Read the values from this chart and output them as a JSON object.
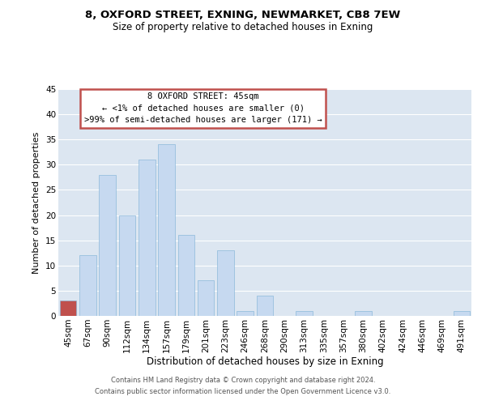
{
  "title1": "8, OXFORD STREET, EXNING, NEWMARKET, CB8 7EW",
  "title2": "Size of property relative to detached houses in Exning",
  "xlabel": "Distribution of detached houses by size in Exning",
  "ylabel": "Number of detached properties",
  "bar_labels": [
    "45sqm",
    "67sqm",
    "90sqm",
    "112sqm",
    "134sqm",
    "157sqm",
    "179sqm",
    "201sqm",
    "223sqm",
    "246sqm",
    "268sqm",
    "290sqm",
    "313sqm",
    "335sqm",
    "357sqm",
    "380sqm",
    "402sqm",
    "424sqm",
    "446sqm",
    "469sqm",
    "491sqm"
  ],
  "bar_values": [
    3,
    12,
    28,
    20,
    31,
    34,
    16,
    7,
    13,
    1,
    4,
    0,
    1,
    0,
    0,
    1,
    0,
    0,
    0,
    0,
    1
  ],
  "highlight_index": 0,
  "bar_color": "#c6d9f0",
  "highlight_color": "#c0504d",
  "bar_edge_color": "#7bafd4",
  "ylim": [
    0,
    45
  ],
  "yticks": [
    0,
    5,
    10,
    15,
    20,
    25,
    30,
    35,
    40,
    45
  ],
  "annotation_box_text": [
    "8 OXFORD STREET: 45sqm",
    "← <1% of detached houses are smaller (0)",
    ">99% of semi-detached houses are larger (171) →"
  ],
  "annotation_box_color": "#c0504d",
  "footer1": "Contains HM Land Registry data © Crown copyright and database right 2024.",
  "footer2": "Contains public sector information licensed under the Open Government Licence v3.0.",
  "bg_color": "#dce6f1",
  "grid_color": "#ffffff",
  "title1_fontsize": 9.5,
  "title2_fontsize": 8.5,
  "ylabel_fontsize": 8.0,
  "xlabel_fontsize": 8.5,
  "tick_fontsize": 7.5,
  "ann_fontsize": 7.5,
  "footer_fontsize": 6.0
}
